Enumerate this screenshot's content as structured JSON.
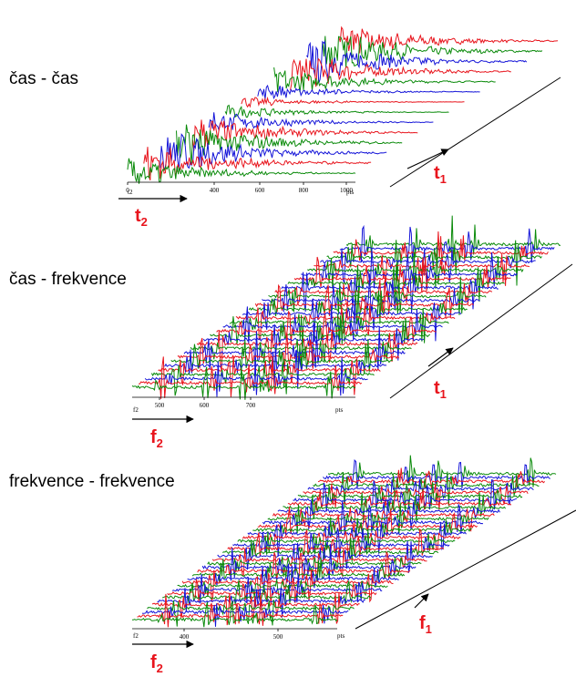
{
  "panels": [
    {
      "label": "čas - čas",
      "axis_name": "t2",
      "axis_ticks": [
        "0",
        "400",
        "600",
        "800",
        "1000"
      ],
      "axis_unit": "pts",
      "horizontal_arrow": {
        "letter": "t",
        "subscript": "2"
      },
      "diagonal_arrow": {
        "letter": "t",
        "subscript": "1"
      }
    },
    {
      "label": "čas - frekvence",
      "axis_name": "f2",
      "axis_ticks": [
        "500",
        "600",
        "700"
      ],
      "axis_unit": "pts",
      "horizontal_arrow": {
        "letter": "f",
        "subscript": "2"
      },
      "diagonal_arrow": {
        "letter": "t",
        "subscript": "1"
      }
    },
    {
      "label": "frekvence - frekvence",
      "axis_name": "f2",
      "axis_ticks": [
        "400",
        "500"
      ],
      "axis_unit": "pts",
      "horizontal_arrow": {
        "letter": "f",
        "subscript": "2"
      },
      "diagonal_arrow": {
        "letter": "f",
        "subscript": "1"
      }
    }
  ]
}
